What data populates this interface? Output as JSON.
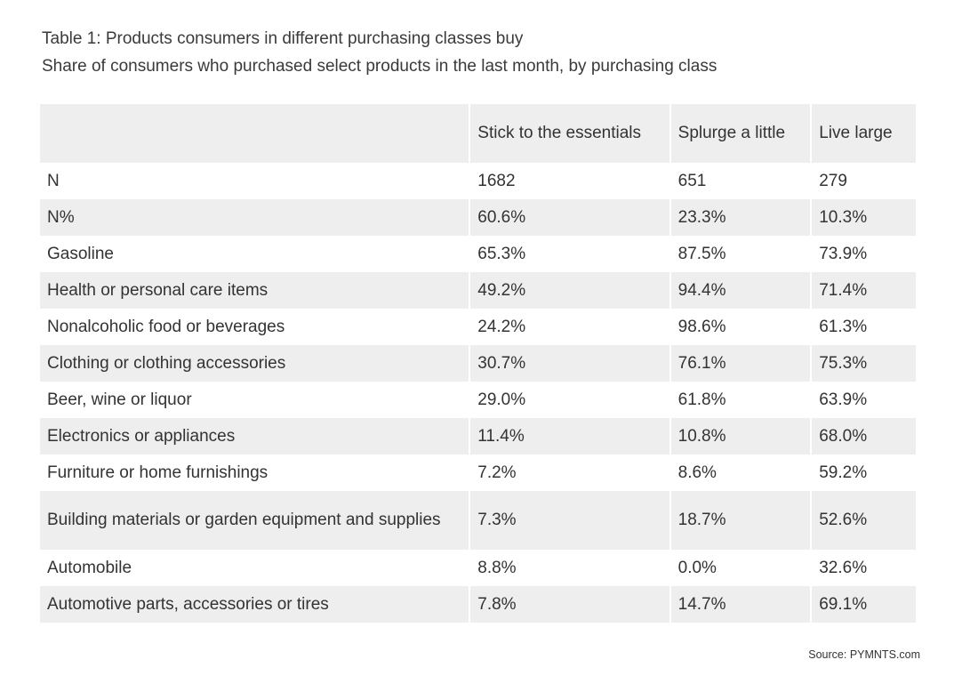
{
  "title": "Table 1: Products consumers in different purchasing classes buy",
  "subtitle": "Share of consumers who purchased select products in the last month, by purchasing class",
  "table": {
    "headers": [
      "",
      "Stick to the essentials",
      "Splurge a little",
      "Live large"
    ],
    "rows": [
      [
        "N",
        "1682",
        "651",
        "279"
      ],
      [
        "N%",
        "60.6%",
        "23.3%",
        "10.3%"
      ],
      [
        "Gasoline",
        "65.3%",
        "87.5%",
        "73.9%"
      ],
      [
        "Health or personal care items",
        "49.2%",
        "94.4%",
        "71.4%"
      ],
      [
        "Nonalcoholic food or beverages",
        "24.2%",
        "98.6%",
        "61.3%"
      ],
      [
        "Clothing or clothing accessories",
        "30.7%",
        "76.1%",
        "75.3%"
      ],
      [
        "Beer, wine or liquor",
        "29.0%",
        "61.8%",
        "63.9%"
      ],
      [
        "Electronics or appliances",
        "11.4%",
        "10.8%",
        "68.0%"
      ],
      [
        "Furniture or home furnishings",
        "7.2%",
        "8.6%",
        "59.2%"
      ],
      [
        "Building materials or garden equipment and supplies",
        "7.3%",
        "18.7%",
        "52.6%"
      ],
      [
        "Automobile",
        "8.8%",
        "0.0%",
        "32.6%"
      ],
      [
        "Automotive parts, accessories or tires",
        "7.8%",
        "14.7%",
        "69.1%"
      ]
    ]
  },
  "source": "Source: PYMNTS.com"
}
